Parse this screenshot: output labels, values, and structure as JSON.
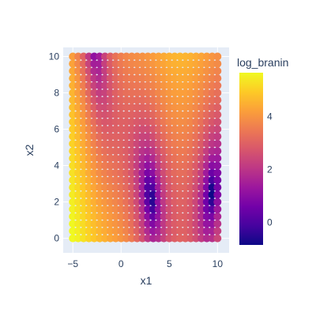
{
  "chart_data": {
    "type": "scatter",
    "title": "",
    "xlabel": "x1",
    "ylabel": "x2",
    "xlim": [
      -6,
      11.2
    ],
    "ylim": [
      -0.8,
      10.5
    ],
    "x_ticks": [
      -5,
      0,
      5,
      10
    ],
    "y_ticks": [
      0,
      2,
      4,
      6,
      8,
      10
    ],
    "x_tick_labels": [
      "−5",
      "0",
      "5",
      "10"
    ],
    "y_tick_labels": [
      "0",
      "2",
      "4",
      "6",
      "8",
      "10"
    ],
    "colorbar": {
      "title": "log_branin",
      "cmin": -0.85,
      "cmax": 5.65,
      "ticks": [
        0,
        2,
        4
      ],
      "tick_labels": [
        "0",
        "2",
        "4"
      ],
      "colorscale": "plasma"
    },
    "grid": true,
    "legend": "none",
    "sample_domain": {
      "x1": [
        -5,
        10
      ],
      "x2": [
        0,
        10
      ]
    },
    "sample_grid": {
      "nx": 28,
      "ny": 26
    },
    "colors": {
      "plot_bg": "#E5ECF6",
      "grid": "#ffffff",
      "text": "#2a3f5f"
    }
  }
}
